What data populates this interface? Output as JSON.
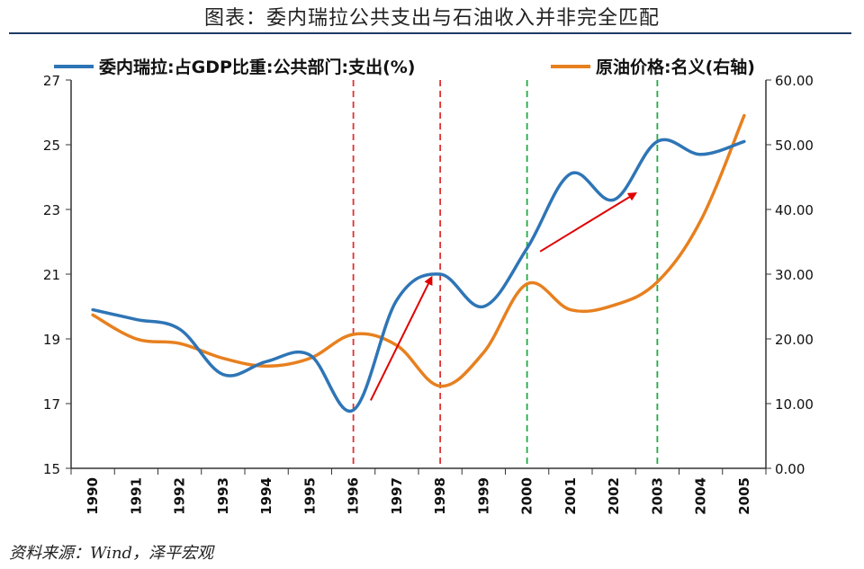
{
  "figure": {
    "title": "图表：委内瑞拉公共支出与石油收入并非完全匹配",
    "source": "资料来源：Wind，泽平宏观"
  },
  "chart_data": {
    "type": "line",
    "x": [
      "1990",
      "1991",
      "1992",
      "1993",
      "1994",
      "1995",
      "1996",
      "1997",
      "1998",
      "1999",
      "2000",
      "2001",
      "2002",
      "2003",
      "2004",
      "2005"
    ],
    "series": [
      {
        "name": "委内瑞拉:占GDP比重:公共部门:支出(%)",
        "axis": "left",
        "color": "#2e75b6",
        "values": [
          19.9,
          19.6,
          19.3,
          17.9,
          18.3,
          18.5,
          16.8,
          20.2,
          21.0,
          20.0,
          21.8,
          24.1,
          23.3,
          25.1,
          24.7,
          25.1
        ]
      },
      {
        "name": "原油价格:名义(右轴)",
        "axis": "right",
        "color": "#e7801f",
        "values": [
          23.7,
          20.0,
          19.3,
          17.0,
          15.8,
          17.0,
          20.7,
          19.0,
          12.7,
          17.9,
          28.5,
          24.5,
          25.2,
          28.8,
          38.3,
          54.5
        ]
      }
    ],
    "left_axis": {
      "ylim": [
        15,
        27
      ],
      "ticks": [
        "15",
        "17",
        "19",
        "21",
        "23",
        "25",
        "27"
      ]
    },
    "right_axis": {
      "ylim": [
        0,
        60
      ],
      "ticks": [
        "0.00",
        "10.00",
        "20.00",
        "30.00",
        "40.00",
        "50.00",
        "60.00"
      ]
    },
    "vlines": [
      {
        "x": "1996",
        "color": "#e03030"
      },
      {
        "x": "1998",
        "color": "#e03030"
      },
      {
        "x": "2000",
        "color": "#22aa44"
      },
      {
        "x": "2003",
        "color": "#22aa44"
      }
    ],
    "arrows": [
      {
        "from": [
          "1996.4",
          17.1
        ],
        "to": [
          "1997.8",
          20.9
        ]
      },
      {
        "from": [
          "2000.3",
          21.7
        ],
        "to": [
          "2002.5",
          23.5
        ]
      }
    ],
    "legend": "top",
    "grid": false
  }
}
